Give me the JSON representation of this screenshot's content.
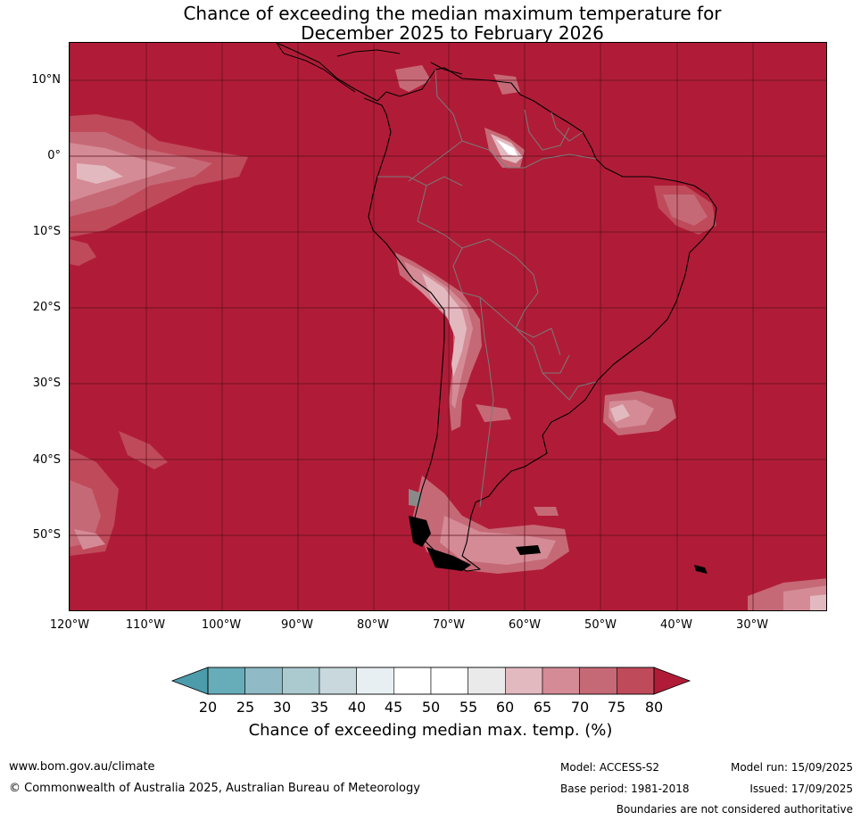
{
  "title": {
    "line1": "Chance of exceeding the median maximum temperature for",
    "line2": "December 2025 to February 2026"
  },
  "map": {
    "lat_labels": [
      "10°N",
      "0°",
      "10°S",
      "20°S",
      "30°S",
      "40°S",
      "50°S"
    ],
    "lon_labels": [
      "120°W",
      "110°W",
      "100°W",
      "90°W",
      "80°W",
      "70°W",
      "60°W",
      "50°W",
      "40°W",
      "30°W"
    ],
    "dominant_category": "80",
    "background_color": "#b01c37"
  },
  "colorbar": {
    "ticks": [
      "20",
      "25",
      "30",
      "35",
      "40",
      "45",
      "50",
      "55",
      "60",
      "65",
      "70",
      "75",
      "80"
    ],
    "colors": [
      "#67adb9",
      "#8fbac6",
      "#abcad0",
      "#c9d8dd",
      "#e8eff2",
      "#ffffff",
      "#ffffff",
      "#eaeaeb",
      "#e3b9c0",
      "#d48b96",
      "#c66977",
      "#bf4a5a"
    ],
    "low_extend_color": "#4c9cab",
    "high_extend_color": "#b01c37",
    "label": "Chance of exceeding median max. temp. (%)"
  },
  "footer": {
    "website": "www.bom.gov.au/climate",
    "copyright": "© Commonwealth of Australia 2025, Australian Bureau of Meteorology",
    "model": "Model: ACCESS-S2",
    "base_period": "Base period: 1981-2018",
    "model_run": "Model run: 15/09/2025",
    "issued": "Issued: 17/09/2025",
    "disclaimer": "Boundaries are not considered authoritative"
  }
}
